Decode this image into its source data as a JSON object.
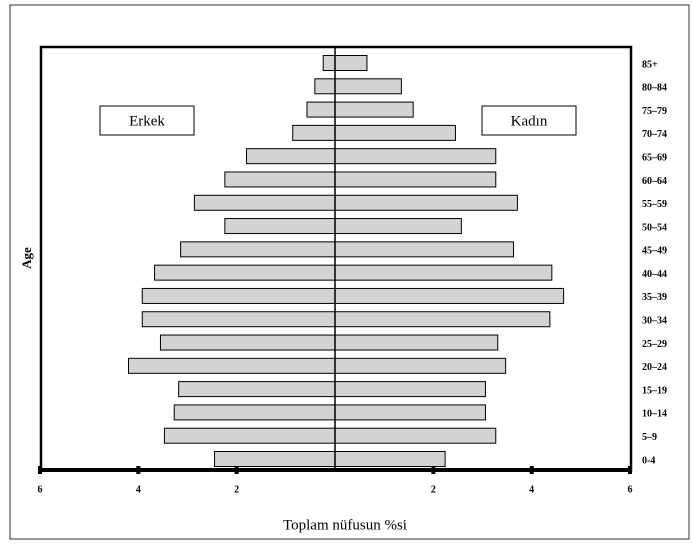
{
  "chart_data": {
    "type": "pyramid",
    "x_label": "Toplam nüfusun %si",
    "y_label": "Age",
    "categories": [
      "85+",
      "80–84",
      "75–79",
      "70–74",
      "65–69",
      "60–64",
      "55–59",
      "50–54",
      "45–49",
      "40–44",
      "35–39",
      "30–34",
      "25–29",
      "20–24",
      "15–19",
      "10–14",
      "5–9",
      "0-4"
    ],
    "series": [
      {
        "name": "Erkek",
        "color": "#d3d3d3",
        "values": [
          0.24,
          0.41,
          0.57,
          0.86,
          1.8,
          2.24,
          2.86,
          2.24,
          3.14,
          3.67,
          3.92,
          3.92,
          3.55,
          4.2,
          3.18,
          3.27,
          3.47,
          2.45
        ]
      },
      {
        "name": "Kadın",
        "color": "#d3d3d3",
        "values": [
          0.65,
          1.35,
          1.59,
          2.45,
          3.27,
          3.27,
          3.71,
          2.57,
          3.63,
          4.41,
          4.65,
          4.37,
          3.31,
          3.47,
          3.06,
          3.06,
          3.27,
          2.24
        ]
      }
    ],
    "xlim": [
      -6,
      6
    ],
    "xticks": [
      {
        "value": -6,
        "label": "6"
      },
      {
        "value": -4,
        "label": "4"
      },
      {
        "value": -2,
        "label": "2"
      },
      2,
      4,
      6
    ]
  }
}
